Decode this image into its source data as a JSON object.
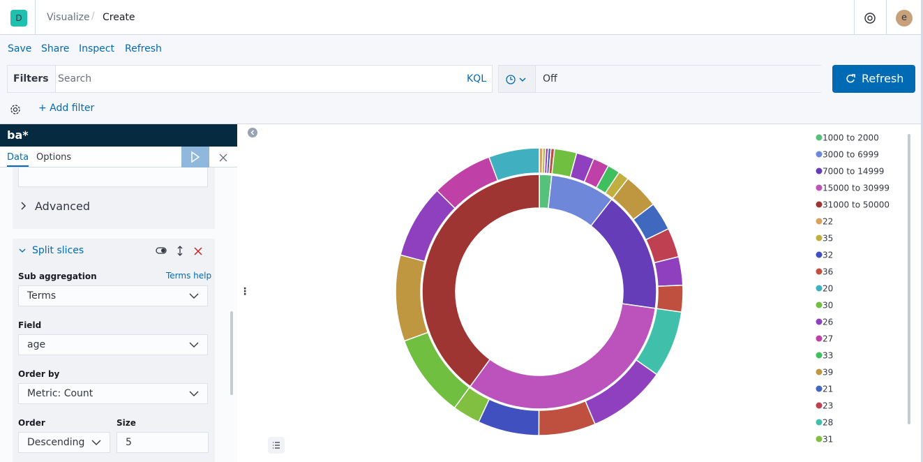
{
  "header": {
    "logo": "D",
    "breadcrumbs": [
      "Visualize",
      "Create"
    ],
    "avatar": "e"
  },
  "top_nav": [
    "Save",
    "Share",
    "Inspect",
    "Refresh"
  ],
  "query_bar": {
    "filters_label": "Filters",
    "search_placeholder": "Search",
    "language": "KQL",
    "refresh_interval": "Off",
    "refresh_button": "Refresh",
    "add_filter": "+ Add filter"
  },
  "sidebar": {
    "index_pattern": "ba*",
    "tabs": [
      "Data",
      "Options"
    ],
    "advanced": "Advanced",
    "split_title": "Split slices",
    "sub_aggregation_label": "Sub aggregation",
    "terms_help": "Terms help",
    "sub_aggregation_value": "Terms",
    "field_label": "Field",
    "field_value": "age",
    "order_by_label": "Order by",
    "order_by_value": "Metric: Count",
    "order_label": "Order",
    "order_value": "Descending",
    "size_label": "Size",
    "size_value": "5"
  },
  "chart_data": {
    "type": "pie",
    "donut": true,
    "legend": [
      {
        "name": "1000 to 2000",
        "color": "#57c17b"
      },
      {
        "name": "3000 to 6999",
        "color": "#6f87d8"
      },
      {
        "name": "7000 to 14999",
        "color": "#663db8"
      },
      {
        "name": "15000 to 30999",
        "color": "#bc52bc"
      },
      {
        "name": "31000 to 50000",
        "color": "#9e3533"
      },
      {
        "name": "22",
        "color": "#daa05d"
      },
      {
        "name": "35",
        "color": "#bfaf40"
      },
      {
        "name": "32",
        "color": "#4050bf"
      },
      {
        "name": "36",
        "color": "#bf5040"
      },
      {
        "name": "20",
        "color": "#40afbf"
      },
      {
        "name": "30",
        "color": "#70bf40"
      },
      {
        "name": "26",
        "color": "#8f40bf"
      },
      {
        "name": "27",
        "color": "#bf40a7"
      },
      {
        "name": "33",
        "color": "#40bf5f"
      },
      {
        "name": "39",
        "color": "#bf9740"
      },
      {
        "name": "21",
        "color": "#4068bf"
      },
      {
        "name": "23",
        "color": "#bf4050"
      },
      {
        "name": "28",
        "color": "#40bfaa"
      },
      {
        "name": "31",
        "color": "#80bf40"
      }
    ],
    "slices": [
      {
        "name": "1000 to 2000",
        "value": 17,
        "children": [
          {
            "name": "22",
            "value": 4
          },
          {
            "name": "35",
            "value": 3
          },
          {
            "name": "26",
            "value": 3
          },
          {
            "name": "32",
            "value": 3
          },
          {
            "name": "36",
            "value": 4
          }
        ]
      },
      {
        "name": "3000 to 6999",
        "value": 89,
        "children": [
          {
            "name": "30",
            "value": 25
          },
          {
            "name": "26",
            "value": 20
          },
          {
            "name": "27",
            "value": 18
          },
          {
            "name": "33",
            "value": 14
          },
          {
            "name": "35",
            "value": 12
          }
        ]
      },
      {
        "name": "7000 to 14999",
        "value": 167,
        "children": [
          {
            "name": "39",
            "value": 40
          },
          {
            "name": "21",
            "value": 32
          },
          {
            "name": "23",
            "value": 33
          },
          {
            "name": "26",
            "value": 32
          },
          {
            "name": "36",
            "value": 30
          }
        ]
      },
      {
        "name": "15000 to 30999",
        "value": 328,
        "children": [
          {
            "name": "28",
            "value": 75
          },
          {
            "name": "26",
            "value": 89
          },
          {
            "name": "36",
            "value": 64
          },
          {
            "name": "32",
            "value": 69
          },
          {
            "name": "31",
            "value": 31
          }
        ]
      },
      {
        "name": "31000 to 50000",
        "value": 400,
        "children": [
          {
            "name": "30",
            "value": 94
          },
          {
            "name": "39",
            "value": 97
          },
          {
            "name": "26",
            "value": 83
          },
          {
            "name": "27",
            "value": 69
          },
          {
            "name": "20",
            "value": 57
          }
        ]
      }
    ]
  }
}
